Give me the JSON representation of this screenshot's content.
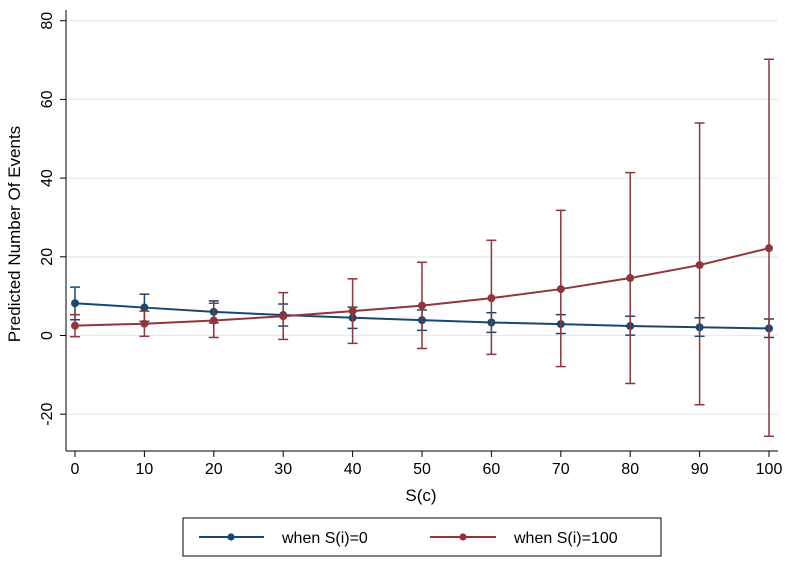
{
  "chart_data": {
    "type": "line",
    "title": "",
    "xlabel": "S(c)",
    "ylabel": "Predicted Number Of Events",
    "x": [
      0,
      10,
      20,
      30,
      40,
      50,
      60,
      70,
      80,
      90,
      100
    ],
    "xticks": [
      "0",
      "10",
      "20",
      "30",
      "40",
      "50",
      "60",
      "70",
      "80",
      "90",
      "100"
    ],
    "yticks": [
      "-20",
      "0",
      "20",
      "40",
      "60",
      "80"
    ],
    "xlim": [
      0,
      100
    ],
    "ylim": [
      -29,
      82
    ],
    "grid": true,
    "legend_position": "bottom",
    "series": [
      {
        "name": "when S(i)=0",
        "color": "#1a476f",
        "values": [
          8.2,
          7.1,
          6.0,
          5.2,
          4.5,
          3.9,
          3.3,
          2.9,
          2.4,
          2.1,
          1.8
        ],
        "lower": [
          4.0,
          3.6,
          3.2,
          2.4,
          1.8,
          1.3,
          0.8,
          0.5,
          0.1,
          -0.2,
          -0.5
        ],
        "upper": [
          12.3,
          10.5,
          8.8,
          8.0,
          7.2,
          6.5,
          5.8,
          5.3,
          4.9,
          4.5,
          4.2
        ]
      },
      {
        "name": "when S(i)=100",
        "color": "#90353b",
        "values": [
          2.5,
          3.0,
          3.8,
          4.9,
          6.2,
          7.6,
          9.5,
          11.8,
          14.6,
          17.9,
          22.2
        ],
        "lower": [
          -0.3,
          -0.2,
          -0.5,
          -1.0,
          -2.0,
          -3.3,
          -4.8,
          -7.9,
          -12.2,
          -17.6,
          -25.6
        ],
        "upper": [
          5.3,
          6.2,
          8.2,
          10.9,
          14.4,
          18.6,
          24.2,
          31.8,
          41.4,
          54.0,
          70.2
        ]
      }
    ]
  }
}
